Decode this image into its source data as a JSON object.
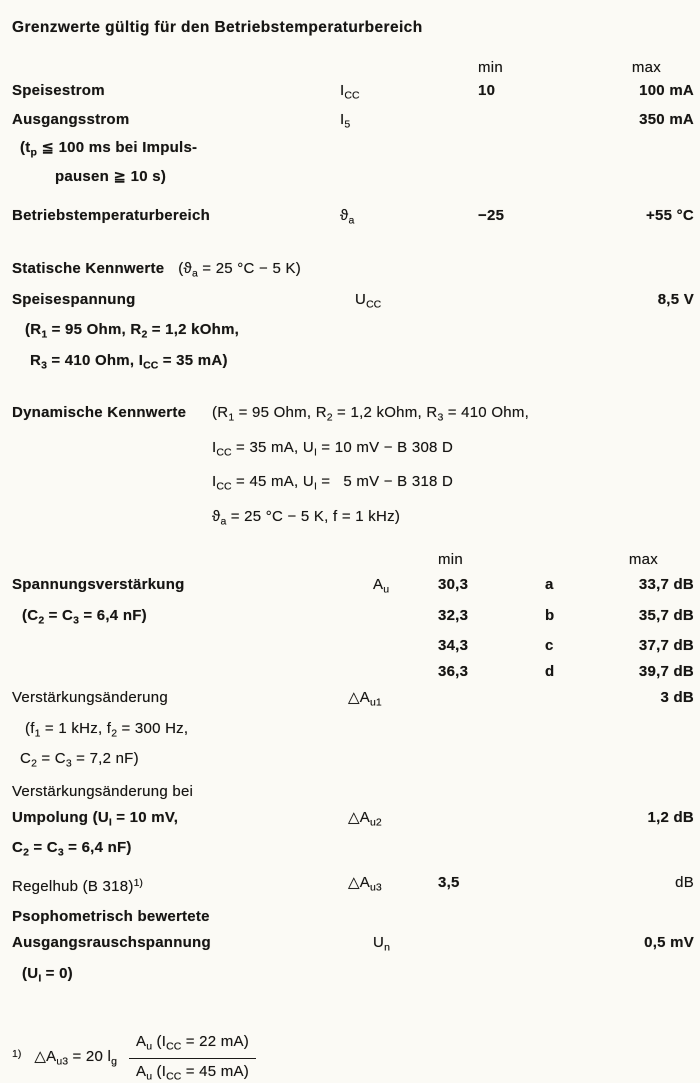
{
  "title": "Grenzwerte gültig für den Betriebstemperaturbereich",
  "columns": {
    "min": "min",
    "max": "max"
  },
  "limits": {
    "rows": [
      {
        "label": "Speisestrom",
        "symbol": "I~CC~",
        "min": "10",
        "max": "100 mA"
      },
      {
        "label": "Ausgangsstrom",
        "symbol": "I~5~",
        "max": "350 mA"
      },
      {
        "label": "(t~p~ ≦ 100 ms bei Impuls-"
      },
      {
        "label": "pausen ≧ 10 s)"
      },
      {
        "label": "Betriebstemperaturbereich",
        "symbol": "ϑ~a~",
        "min": "−25",
        "max": "+55 °C"
      }
    ]
  },
  "statik": {
    "title": "Statische Kennwerte",
    "condition": "(ϑ~a~ = 25 °C − 5 K)",
    "rows": [
      {
        "label": "Speisespannung",
        "symbol": "U~CC~",
        "max": "8,5 V"
      },
      {
        "label": "(R~1~ = 95 Ohm, R~2~ = 1,2 kOhm,"
      },
      {
        "label": "R~3~ = 410 Ohm, I~CC~ = 35 mA)"
      }
    ]
  },
  "dynamik": {
    "title": "Dynamische Kennwerte",
    "conditions": [
      "(R~1~ = 95 Ohm, R~2~ = 1,2 kOhm, R~3~ = 410 Ohm,",
      "I~CC~ = 35 mA, U~I~ = 10 mV − B 308 D",
      "I~CC~ = 45 mA, U~I~ =  5 mV − B 318 D",
      "ϑ~a~ = 25 °C − 5 K, f = 1 kHz)"
    ],
    "rows": [
      {
        "label": "Spannungsverstärkung",
        "symbol": "A~u~",
        "min": "30,3",
        "grade": "a",
        "max": "33,7 dB"
      },
      {
        "label": "(C~2~ = C~3~ = 6,4 nF)",
        "min": "32,3",
        "grade": "b",
        "max": "35,7 dB"
      },
      {
        "min": "34,3",
        "grade": "c",
        "max": "37,7 dB"
      },
      {
        "min": "36,3",
        "grade": "d",
        "max": "39,7 dB"
      },
      {
        "label": "Verstärkungsänderung",
        "symbol": "△A~u1~",
        "max": "3 dB"
      },
      {
        "label": "(f~1~ = 1 kHz, f~2~ = 300 Hz,"
      },
      {
        "label": "C~2~ = C~3~ = 7,2 nF)"
      },
      {
        "label": "Verstärkungsänderung bei"
      },
      {
        "label": "Umpolung (U~I~ = 10 mV,",
        "symbol": "△A~u2~",
        "max": "1,2 dB"
      },
      {
        "label": "C~2~ = C~3~ = 6,4 nF)"
      },
      {
        "label": "Regelhub (B 318)^1)^",
        "symbol": "△A~u3~",
        "min": "3,5",
        "max": "dB"
      },
      {
        "label": "Psophometrisch bewertete"
      },
      {
        "label": "Ausgangsrauschspannung",
        "symbol": "U~n~",
        "max": "0,5 mV"
      },
      {
        "label": "(U~I~ = 0)"
      }
    ]
  },
  "footnote": {
    "marker": "^1)^",
    "lhs": "△A~u3~ = 20 l~g~",
    "numerator": "A~u~ (I~CC~ = 22 mA)",
    "denominator": "A~u~ (I~CC~ = 45 mA)"
  }
}
